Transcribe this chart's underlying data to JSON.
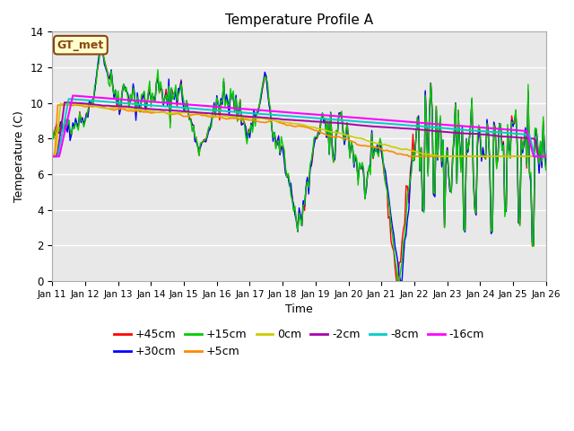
{
  "title": "Temperature Profile A",
  "xlabel": "Time",
  "ylabel": "Temperature (C)",
  "ylim": [
    0,
    14
  ],
  "xlim": [
    0,
    360
  ],
  "xtick_labels": [
    "Jan 11",
    "Jan 12",
    "Jan 13",
    "Jan 14",
    "Jan 15",
    "Jan 16",
    "Jan 17",
    "Jan 18",
    "Jan 19",
    "Jan 20",
    "Jan 21",
    "Jan 22",
    "Jan 23",
    "Jan 24",
    "Jan 25",
    "Jan 26"
  ],
  "xtick_positions": [
    0,
    24,
    48,
    72,
    96,
    120,
    144,
    168,
    192,
    216,
    240,
    264,
    288,
    312,
    336,
    360
  ],
  "ytick_positions": [
    0,
    2,
    4,
    6,
    8,
    10,
    12,
    14
  ],
  "series_colors": [
    "#ff0000",
    "#0000ff",
    "#00cc00",
    "#ff8800",
    "#cccc00",
    "#aa00aa",
    "#00cccc",
    "#ff00ff"
  ],
  "series_labels": [
    "+45cm",
    "+30cm",
    "+15cm",
    "+5cm",
    "0cm",
    "-2cm",
    "-8cm",
    "-16cm"
  ],
  "plot_bg_color": "#e8e8e8",
  "title_fontsize": 11,
  "axis_fontsize": 9,
  "legend_fontsize": 9,
  "gt_met_label": "GT_met",
  "gt_met_color": "#8b4513",
  "gt_met_bg": "#ffffcc"
}
